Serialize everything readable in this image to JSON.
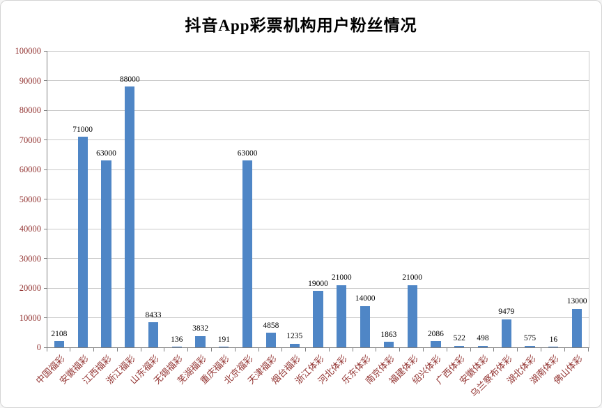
{
  "title": "抖音App彩票机构用户粉丝情况",
  "colors": {
    "bar": "#4F86C6",
    "grid": "#C9C9C9",
    "axis_line": "#808080",
    "axis_label": "#943634",
    "value_label": "#000000",
    "background": "#FFFFFF"
  },
  "chart_data": {
    "type": "bar",
    "title": "抖音App彩票机构用户粉丝情况",
    "categories": [
      "中国福彩",
      "安徽福彩",
      "江西福彩",
      "浙江福彩",
      "山东福彩",
      "无锡福彩",
      "芜湖福彩",
      "重庆福彩",
      "北京福彩",
      "天津福彩",
      "烟台福彩",
      "浙江体彩",
      "河北体彩",
      "乐东体彩",
      "南京体彩",
      "福建体彩",
      "绍兴体彩",
      "广西体彩",
      "安徽体彩",
      "乌兰察布体彩",
      "湖北体彩",
      "湖南体彩",
      "佛山体彩"
    ],
    "values": [
      2108,
      71000,
      63000,
      88000,
      8433,
      136,
      3832,
      191,
      63000,
      4858,
      1235,
      19000,
      21000,
      14000,
      1863,
      21000,
      2086,
      522,
      498,
      9479,
      575,
      16,
      13000
    ],
    "xlabel": "",
    "ylabel": "",
    "ylim": [
      0,
      100000
    ],
    "ytick_interval": 10000,
    "ytick_labels": [
      "0",
      "10000",
      "20000",
      "30000",
      "40000",
      "50000",
      "60000",
      "70000",
      "80000",
      "90000",
      "100000"
    ],
    "grid": "horizontal",
    "legend": "none",
    "value_labels_shown": true
  }
}
